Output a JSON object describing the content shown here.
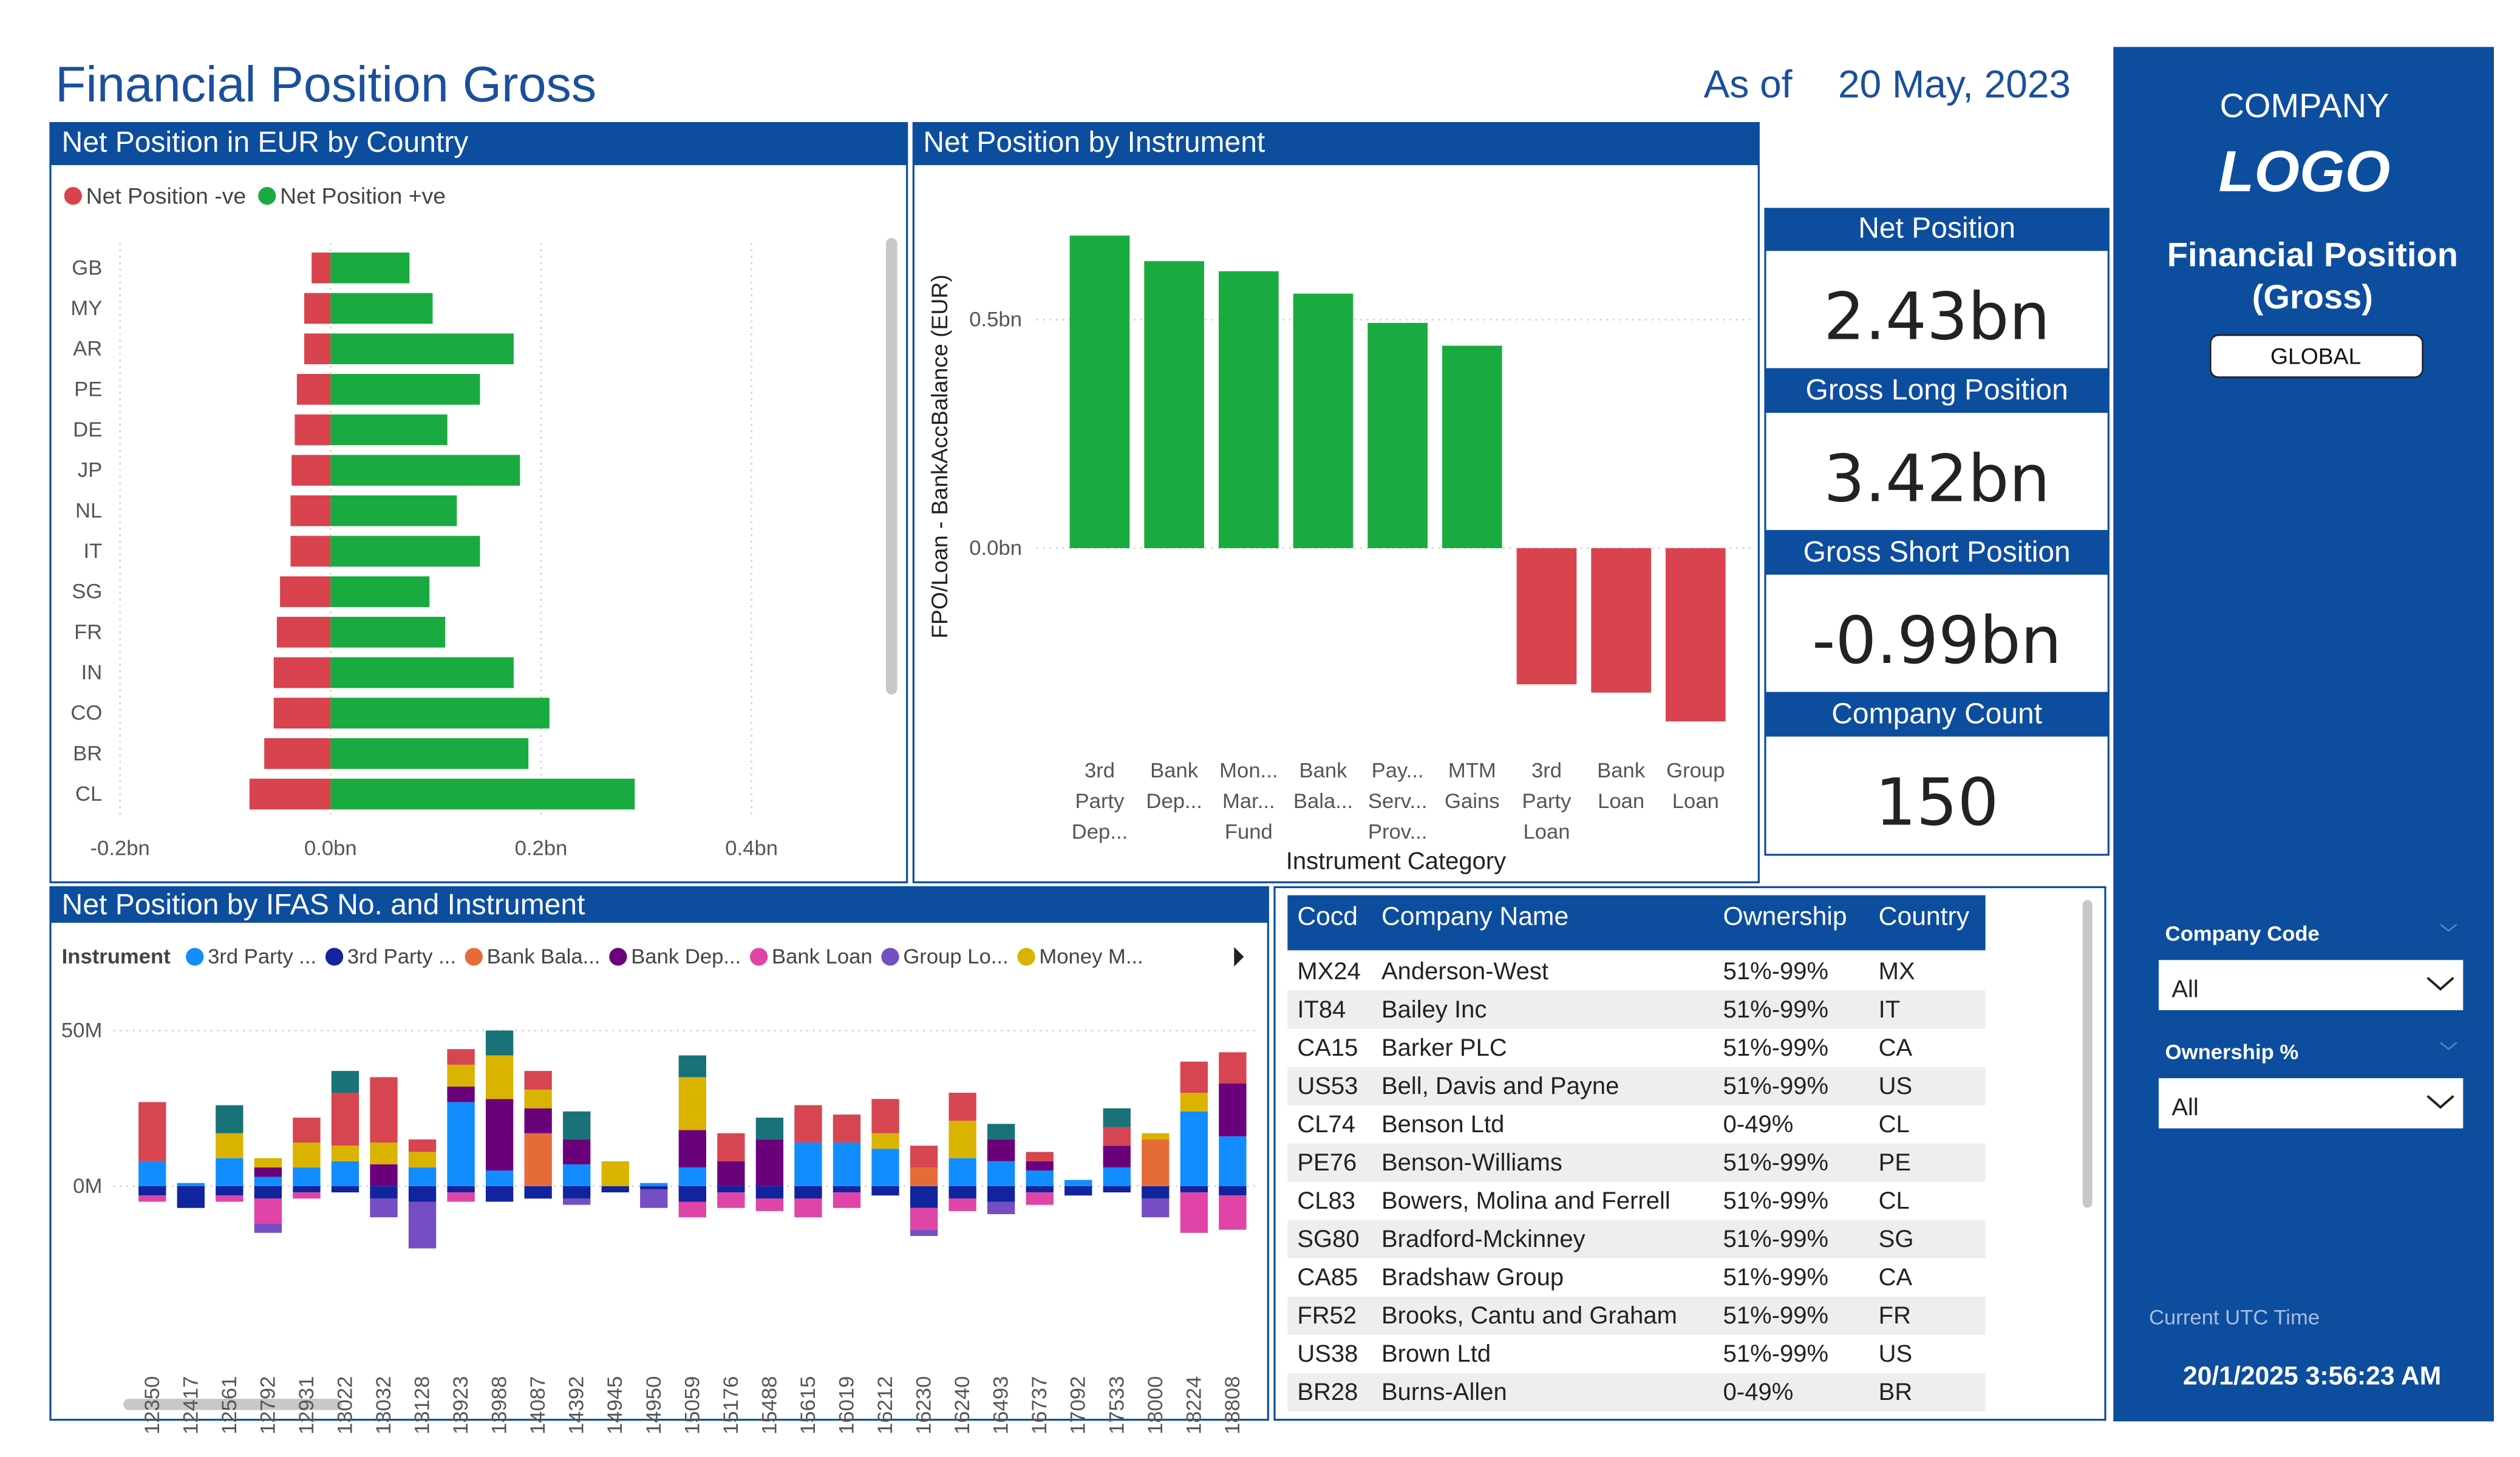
{
  "header": {
    "title": "Financial Position Gross",
    "as_of_label": "As of",
    "date": "20 May, 2023"
  },
  "sidebar": {
    "company": "COMPANY",
    "logo": "LOGO",
    "title": "Financial Position (Gross)",
    "button": "GLOBAL",
    "filters": [
      {
        "label": "Company Code",
        "value": "All"
      },
      {
        "label": "Ownership %",
        "value": "All"
      }
    ],
    "time_label": "Current UTC Time",
    "time": "20/1/2025 3:56:23 AM"
  },
  "kpis": [
    {
      "label": "Net Position",
      "value": "2.43bn"
    },
    {
      "label": "Gross Long Position",
      "value": "3.42bn"
    },
    {
      "label": "Gross Short Position",
      "value": "-0.99bn"
    },
    {
      "label": "Company Count",
      "value": "150"
    }
  ],
  "chart_data": [
    {
      "type": "hbar",
      "title": "Net Position in EUR by Country",
      "categories": [
        "GB",
        "MY",
        "AR",
        "PE",
        "DE",
        "JP",
        "NL",
        "IT",
        "SG",
        "FR",
        "IN",
        "CO",
        "BR",
        "CL"
      ],
      "series": [
        {
          "name": "Net Position -ve",
          "color": "#d9434e",
          "values": [
            -0.018,
            -0.025,
            -0.025,
            -0.032,
            -0.034,
            -0.037,
            -0.038,
            -0.038,
            -0.048,
            -0.051,
            -0.054,
            -0.054,
            -0.063,
            -0.077
          ]
        },
        {
          "name": "Net Position +ve",
          "color": "#1aab40",
          "values": [
            0.075,
            0.097,
            0.174,
            0.142,
            0.111,
            0.18,
            0.12,
            0.142,
            0.094,
            0.109,
            0.174,
            0.208,
            0.188,
            0.289
          ]
        }
      ],
      "xlim": [
        -0.2,
        0.52
      ],
      "xticks": [
        {
          "value": -0.2,
          "label": "-0.2bn"
        },
        {
          "value": 0,
          "label": "0.0bn"
        },
        {
          "value": 0.2,
          "label": "0.2bn"
        },
        {
          "value": 0.4,
          "label": "0.4bn"
        }
      ],
      "grid": true
    },
    {
      "type": "bar",
      "title": "Net Position by Instrument",
      "categories": [
        "3rd Party Dep...",
        "Bank Dep...",
        "Mon... Mar... Fund",
        "Bank Bala...",
        "Pay... Serv... Prov...",
        "MTM Gains",
        "3rd Party Loan",
        "Bank Loan",
        "Group Loan"
      ],
      "values": [
        0.684,
        0.628,
        0.606,
        0.557,
        0.493,
        0.443,
        -0.298,
        -0.316,
        -0.379
      ],
      "positive_color": "#1aab40",
      "negative_color": "#d9434e",
      "x_label": "Instrument Category",
      "y_label": "FPO/Loan - BankAccBalance (EUR)",
      "ylim": [
        -0.43,
        0.7
      ],
      "yticks": [
        {
          "value": 0,
          "label": "0.0bn"
        },
        {
          "value": 0.5,
          "label": "0.5bn"
        }
      ],
      "grid": true
    },
    {
      "type": "stacked_bar",
      "title": "Net Position by IFAS No. and Instrument",
      "legend_title": "Instrument",
      "categories": [
        "12350",
        "12417",
        "12561",
        "12792",
        "12931",
        "13022",
        "13032",
        "13128",
        "13923",
        "13988",
        "14087",
        "14392",
        "14945",
        "14950",
        "15059",
        "15176",
        "15488",
        "15615",
        "16019",
        "16212",
        "16230",
        "16240",
        "16493",
        "16737",
        "17092",
        "17533",
        "18000",
        "18224",
        "18808"
      ],
      "series": [
        {
          "name": "3rd Party ...",
          "color": "#118dff",
          "values": [
            8,
            1,
            9,
            3,
            6,
            8,
            0,
            6,
            27,
            5,
            0,
            7,
            0,
            1,
            6,
            0,
            0,
            14,
            14,
            12,
            0,
            9,
            8,
            5,
            2,
            6,
            0,
            24,
            16
          ]
        },
        {
          "name": "3rd Party ...",
          "color": "#12239e",
          "values": [
            -3,
            -7,
            -3,
            -4,
            -2,
            -2,
            -4,
            -5,
            -2,
            -5,
            -4,
            -4,
            -2,
            -1,
            -5,
            -2,
            -4,
            -4,
            -2,
            -3,
            -7,
            -4,
            -5,
            -2,
            -3,
            -2,
            -4,
            -2,
            -3
          ]
        },
        {
          "name": "Bank Bala...",
          "color": "#e66c37",
          "values": [
            0,
            0,
            0,
            0,
            0,
            0,
            0,
            0,
            0,
            0,
            17,
            0,
            0,
            0,
            0,
            0,
            0,
            0,
            0,
            0,
            6,
            0,
            0,
            0,
            0,
            0,
            15,
            0,
            0
          ]
        },
        {
          "name": "Bank Dep...",
          "color": "#6b007b",
          "values": [
            0,
            0,
            0,
            3,
            0,
            0,
            7,
            0,
            5,
            23,
            8,
            8,
            0,
            0,
            12,
            8,
            15,
            0,
            0,
            0,
            0,
            0,
            7,
            3,
            0,
            7,
            0,
            0,
            17
          ]
        },
        {
          "name": "Bank Loan",
          "color": "#e044a7",
          "values": [
            -2,
            0,
            -2,
            -8,
            -2,
            0,
            0,
            0,
            -3,
            0,
            0,
            0,
            0,
            0,
            -5,
            -5,
            -4,
            -6,
            -5,
            0,
            -7,
            -4,
            0,
            -4,
            0,
            0,
            0,
            -13,
            -11
          ]
        },
        {
          "name": "Group Lo...",
          "color": "#744ec2",
          "values": [
            0,
            0,
            0,
            -3,
            0,
            0,
            -6,
            -15,
            0,
            0,
            0,
            -2,
            0,
            -6,
            0,
            0,
            0,
            0,
            0,
            0,
            -2,
            0,
            -4,
            0,
            0,
            0,
            -6,
            0,
            0
          ]
        },
        {
          "name": "Money M...",
          "color": "#d9b300",
          "values": [
            0,
            0,
            8,
            3,
            8,
            5,
            7,
            5,
            7,
            14,
            6,
            0,
            8,
            0,
            17,
            0,
            0,
            0,
            0,
            5,
            0,
            12,
            0,
            0,
            0,
            0,
            2,
            6,
            0
          ]
        },
        {
          "name": null,
          "color": "#d64550",
          "values": [
            19,
            0,
            0,
            0,
            8,
            17,
            21,
            4,
            5,
            0,
            6,
            0,
            0,
            0,
            0,
            9,
            0,
            12,
            9,
            11,
            7,
            9,
            0,
            3,
            0,
            6,
            0,
            10,
            10
          ]
        },
        {
          "name": null,
          "color": "#197278",
          "values": [
            0,
            0,
            9,
            0,
            0,
            7,
            0,
            0,
            0,
            8,
            0,
            9,
            0,
            0,
            7,
            0,
            7,
            0,
            0,
            0,
            0,
            0,
            5,
            0,
            0,
            6,
            0,
            0,
            0
          ]
        }
      ],
      "ylim": [
        -22,
        56
      ],
      "yticks": [
        {
          "value": 0,
          "label": "0M"
        },
        {
          "value": 50,
          "label": "50M"
        }
      ],
      "grid": true
    }
  ],
  "table": {
    "columns": [
      "Cocd",
      "Company Name",
      "Ownership",
      "Country"
    ],
    "rows": [
      [
        "MX24",
        "Anderson-West",
        "51%-99%",
        "MX"
      ],
      [
        "IT84",
        "Bailey Inc",
        "51%-99%",
        "IT"
      ],
      [
        "CA15",
        "Barker PLC",
        "51%-99%",
        "CA"
      ],
      [
        "US53",
        "Bell, Davis and Payne",
        "51%-99%",
        "US"
      ],
      [
        "CL74",
        "Benson Ltd",
        "0-49%",
        "CL"
      ],
      [
        "PE76",
        "Benson-Williams",
        "51%-99%",
        "PE"
      ],
      [
        "CL83",
        "Bowers, Molina and Ferrell",
        "51%-99%",
        "CL"
      ],
      [
        "SG80",
        "Bradford-Mckinney",
        "51%-99%",
        "SG"
      ],
      [
        "CA85",
        "Bradshaw Group",
        "51%-99%",
        "CA"
      ],
      [
        "FR52",
        "Brooks, Cantu and Graham",
        "51%-99%",
        "FR"
      ],
      [
        "US38",
        "Brown Ltd",
        "51%-99%",
        "US"
      ],
      [
        "BR28",
        "Burns-Allen",
        "0-49%",
        "BR"
      ]
    ]
  }
}
